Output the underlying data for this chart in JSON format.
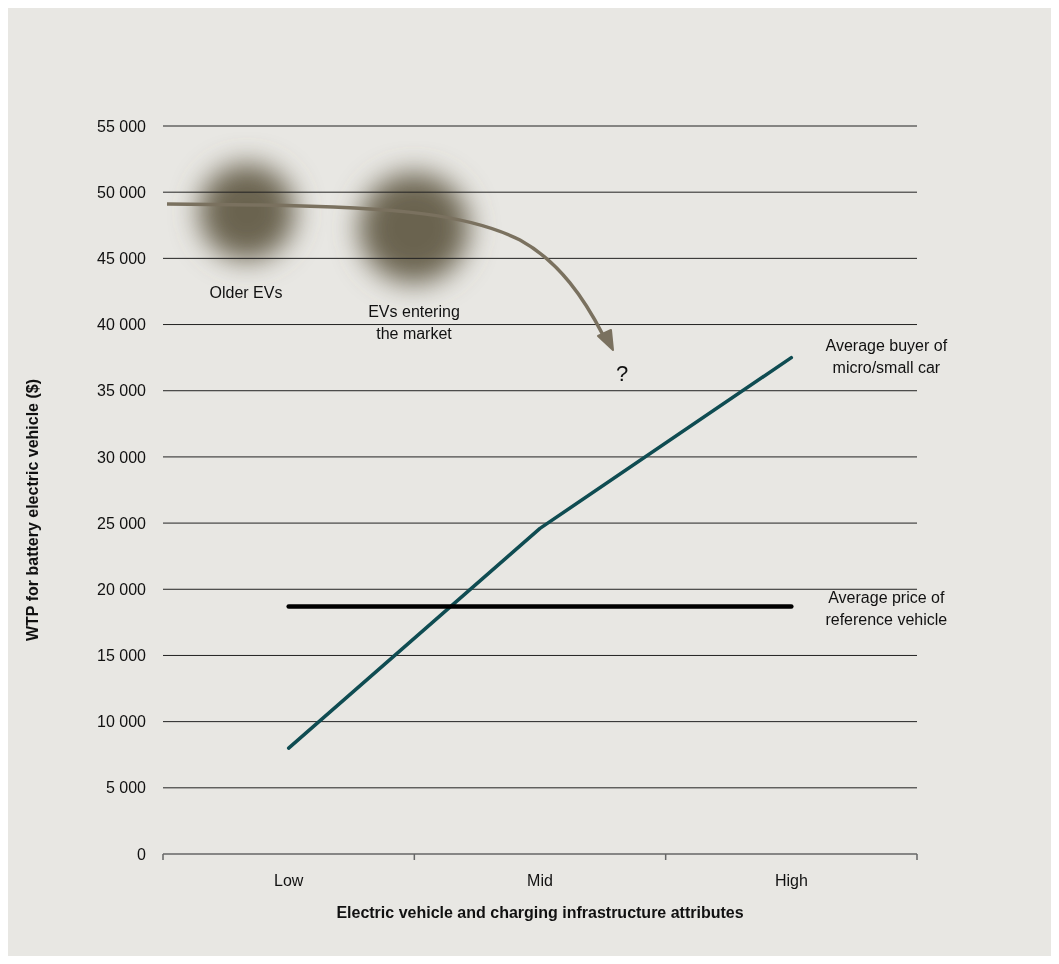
{
  "chart_data": {
    "type": "line",
    "xlabel": "Electric vehicle and charging infrastructure attributes",
    "ylabel": "WTP for battery electric vehicle ($)",
    "categories": [
      "Low",
      "Mid",
      "High"
    ],
    "series": [
      {
        "name": "Average buyer of micro/small car",
        "color": "#0f4c52",
        "values": [
          8000,
          24600,
          37500
        ]
      },
      {
        "name": "Average price of reference vehicle",
        "color": "#000000",
        "values": [
          18700,
          18700,
          18700
        ]
      }
    ],
    "ylim": [
      0,
      55000
    ],
    "yticks": [
      0,
      {
        "value": 5000,
        "label": "5 000"
      },
      {
        "value": 10000,
        "label": "10 000"
      },
      {
        "value": 15000,
        "label": "15 000"
      },
      {
        "value": 20000,
        "label": "20 000"
      },
      {
        "value": 25000,
        "label": "25 000"
      },
      {
        "value": 30000,
        "label": "30 000"
      },
      {
        "value": 35000,
        "label": "35 000"
      },
      {
        "value": 40000,
        "label": "40 000"
      },
      {
        "value": 45000,
        "label": "45 000"
      },
      {
        "value": 50000,
        "label": "50 000"
      },
      {
        "value": 55000,
        "label": "55 000"
      }
    ],
    "grid": "y",
    "marker": "none",
    "line_style": "solid",
    "annotations": [
      "Older EVs",
      "EVs entering the market",
      "?"
    ]
  }
}
